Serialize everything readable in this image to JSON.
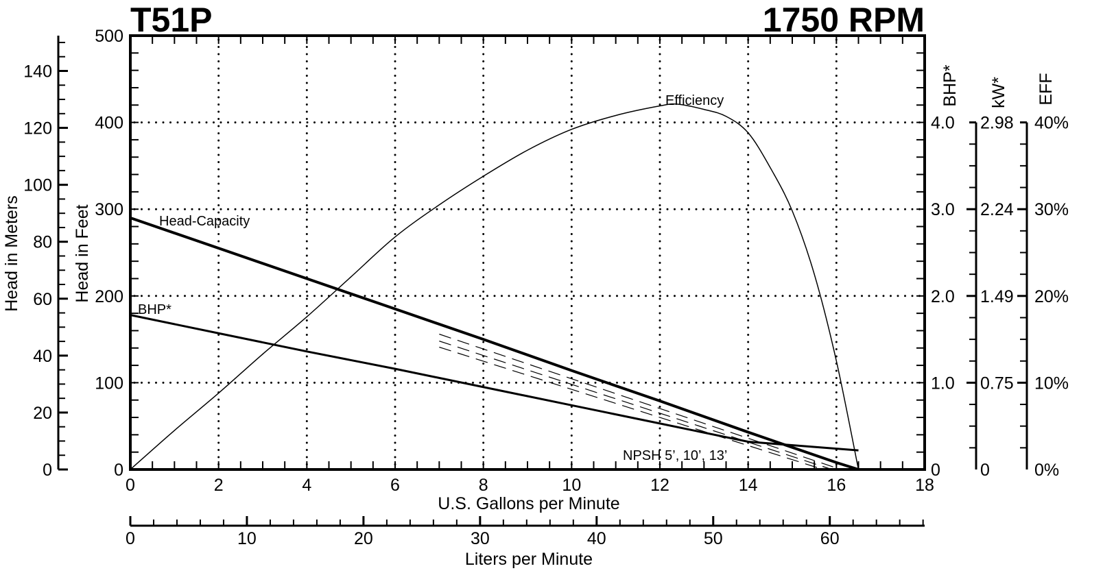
{
  "header": {
    "model": "T51P",
    "speed": "1750 RPM"
  },
  "axes": {
    "x_primary": {
      "label": "U.S. Gallons per Minute",
      "ticks": [
        "0",
        "2",
        "4",
        "6",
        "8",
        "10",
        "12",
        "14",
        "16",
        "18"
      ]
    },
    "x_secondary": {
      "label": "Liters per Minute",
      "ticks": [
        "0",
        "10",
        "20",
        "30",
        "40",
        "50",
        "60"
      ]
    },
    "y_meters": {
      "label": "Head in Meters",
      "ticks": [
        "0",
        "20",
        "40",
        "60",
        "80",
        "100",
        "120",
        "140"
      ]
    },
    "y_feet": {
      "label": "Head in Feet",
      "ticks": [
        "0",
        "100",
        "200",
        "300",
        "400",
        "500"
      ]
    },
    "y_bhp": {
      "label": "BHP*",
      "ticks": [
        "0",
        "1.0",
        "2.0",
        "3.0",
        "4.0"
      ]
    },
    "y_kw": {
      "label": "kW*",
      "ticks": [
        "0",
        "0.75",
        "1.49",
        "2.24",
        "2.98"
      ]
    },
    "y_eff": {
      "label": "EFF",
      "ticks": [
        "0%",
        "10%",
        "20%",
        "30%",
        "40%"
      ]
    }
  },
  "annotations": {
    "head_capacity": "Head-Capacity",
    "bhp": "BHP*",
    "efficiency": "Efficiency",
    "npsh": "NPSH 5’, 10’, 13’"
  },
  "chart_data": {
    "type": "line",
    "title": "T51P 1750 RPM",
    "xlabel": "U.S. Gallons per Minute",
    "xlabel_secondary": "Liters per Minute",
    "ylabel": "Head in Feet",
    "ylabel_secondary": "Head in Meters",
    "ylabel_right": [
      "BHP*",
      "kW*",
      "EFF"
    ],
    "xlim": [
      0,
      18
    ],
    "ylim": [
      0,
      500
    ],
    "grid": true,
    "series": [
      {
        "name": "Head-Capacity",
        "unit": "ft",
        "x": [
          0,
          2,
          4,
          6,
          8,
          10,
          12,
          14,
          16,
          16.5
        ],
        "values": [
          290,
          255,
          220,
          185,
          150,
          114,
          79,
          43,
          8,
          0
        ]
      },
      {
        "name": "BHP*",
        "unit": "hp",
        "x": [
          0,
          2,
          4,
          6,
          8,
          10,
          12,
          14,
          16,
          16.5
        ],
        "values": [
          1.78,
          1.57,
          1.36,
          1.16,
          0.95,
          0.74,
          0.53,
          0.32,
          0.24,
          0.22
        ]
      },
      {
        "name": "Efficiency",
        "unit": "%",
        "x": [
          0,
          1,
          2,
          3,
          4,
          5,
          6,
          7,
          8,
          9,
          10,
          11,
          12,
          12.4,
          13,
          13.5,
          14,
          14.5,
          15,
          15.5,
          16,
          16.5
        ],
        "values": [
          0,
          4.5,
          8.8,
          13.3,
          17.6,
          22.2,
          26.8,
          30.5,
          33.8,
          36.8,
          39.2,
          40.8,
          41.9,
          42.1,
          41.5,
          40.7,
          38.8,
          34.8,
          29.8,
          22.5,
          12.5,
          0
        ]
      },
      {
        "name": "NPSH 5'",
        "unit": "ft",
        "x": [
          7,
          16.1
        ],
        "values": [
          156,
          0
        ]
      },
      {
        "name": "NPSH 10'",
        "unit": "ft",
        "x": [
          7,
          15.9
        ],
        "values": [
          148,
          0
        ]
      },
      {
        "name": "NPSH 13'",
        "unit": "ft",
        "x": [
          7,
          15.7
        ],
        "values": [
          141,
          0
        ]
      }
    ]
  },
  "colors": {
    "line": "#000000",
    "background": "#ffffff"
  }
}
